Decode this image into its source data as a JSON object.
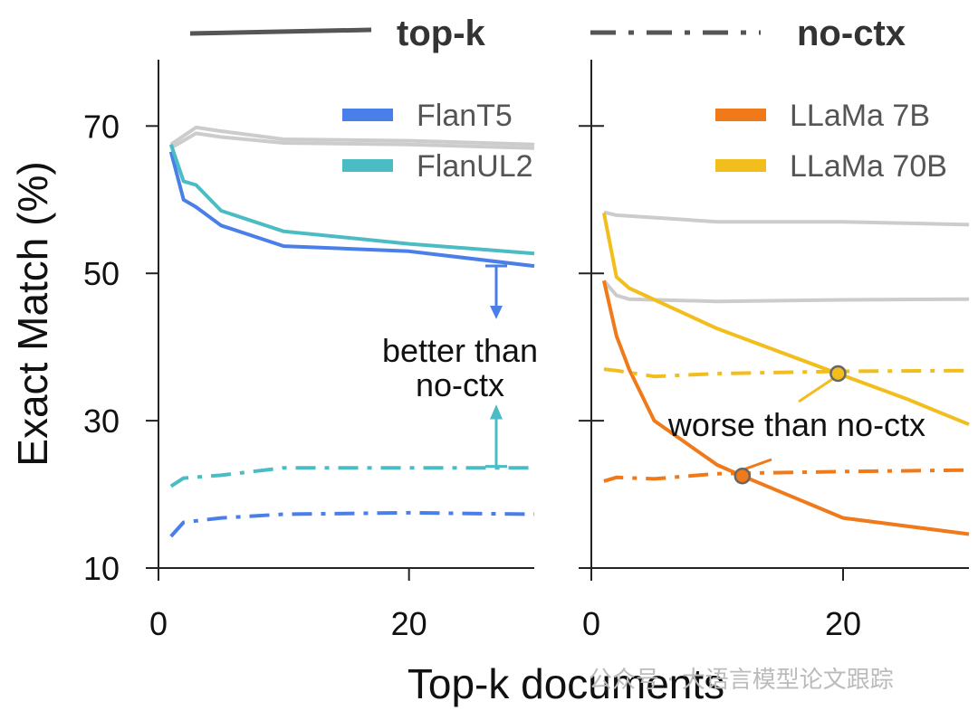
{
  "chart_data": {
    "type": "line",
    "xlabel": "Top-k documents",
    "ylabel": "Exact Match (%)",
    "ylim": [
      10,
      79
    ],
    "yticks": [
      10,
      30,
      50,
      70
    ],
    "xticks": [
      0,
      20
    ],
    "line_styles": [
      {
        "label": "top-k",
        "dash": "solid"
      },
      {
        "label": "no-ctx",
        "dash": "dashdot"
      }
    ],
    "panels": [
      {
        "xlim": [
          0,
          30
        ],
        "series": [
          {
            "name": "FlanT5",
            "color": "#4a7ee8",
            "x": [
              1,
              2,
              3,
              5,
              10,
              20,
              30
            ],
            "values": [
              66.5,
              60,
              59,
              56.5,
              53.7,
              53,
              51
            ]
          },
          {
            "name": "FlanUL2",
            "color": "#4bbcc4",
            "x": [
              1,
              2,
              3,
              5,
              10,
              20,
              30
            ],
            "values": [
              67.5,
              62.5,
              62,
              58.5,
              55.7,
              54,
              52.7
            ]
          },
          {
            "name": "",
            "color": "#cccccc",
            "x": [
              1,
              3,
              5,
              10,
              20,
              30
            ],
            "values": [
              67.5,
              69.8,
              69.3,
              68.2,
              68,
              67.5
            ]
          },
          {
            "name": "",
            "color": "#cccccc",
            "x": [
              1,
              3,
              5,
              10,
              20,
              30
            ],
            "values": [
              67,
              69,
              68.5,
              67.7,
              67.5,
              67
            ]
          },
          {
            "name": "",
            "color": "#4bbcc4",
            "dash": true,
            "x": [
              1,
              2,
              5,
              10,
              20,
              30
            ],
            "values": [
              21.1,
              22.2,
              22.6,
              23.6,
              23.6,
              23.6
            ]
          },
          {
            "name": "",
            "color": "#4a7ee8",
            "dash": true,
            "x": [
              1,
              2,
              5,
              10,
              20,
              30
            ],
            "values": [
              14.3,
              16.2,
              16.8,
              17.3,
              17.5,
              17.3
            ]
          }
        ],
        "annotation": "better than\nno-ctx"
      },
      {
        "xlim": [
          0,
          30
        ],
        "series": [
          {
            "name": "LLaMa 7B",
            "color": "#f07a1a",
            "x": [
              1,
              2,
              3,
              5,
              10,
              12,
              20,
              30
            ],
            "values": [
              49,
              41.5,
              37,
              30,
              24,
              22.5,
              16.8,
              14.6
            ]
          },
          {
            "name": "LLaMa 70B",
            "color": "#f2be1d",
            "x": [
              1,
              2,
              3,
              10,
              19.6,
              25,
              30
            ],
            "values": [
              58.2,
              49.5,
              48,
              42.5,
              36.4,
              33,
              29.5
            ]
          },
          {
            "name": "",
            "color": "#cccccc",
            "x": [
              1,
              2,
              10,
              20,
              30
            ],
            "values": [
              58.3,
              57.9,
              57,
              57,
              56.6
            ]
          },
          {
            "name": "",
            "color": "#cccccc",
            "x": [
              1,
              2,
              3,
              10,
              20,
              30
            ],
            "values": [
              49,
              47,
              46.5,
              46.2,
              46.4,
              46.5
            ]
          },
          {
            "name": "",
            "color": "#f2be1d",
            "dash": true,
            "x": [
              1,
              2,
              5,
              10,
              20,
              30
            ],
            "values": [
              37,
              36.8,
              36,
              36.4,
              36.7,
              36.8
            ]
          },
          {
            "name": "",
            "color": "#f07a1a",
            "dash": true,
            "x": [
              1,
              2,
              5,
              10,
              20,
              30
            ],
            "values": [
              21.8,
              22.3,
              22.1,
              22.8,
              23.1,
              23.3
            ]
          }
        ],
        "crossings": [
          {
            "x": 19.6,
            "y": 36.4,
            "color": "#f2be1d"
          },
          {
            "x": 12,
            "y": 22.5,
            "color": "#f07a1a"
          }
        ],
        "annotation": "worse than no-ctx"
      }
    ]
  },
  "watermark": "公众号 · 大语言模型论文跟踪"
}
